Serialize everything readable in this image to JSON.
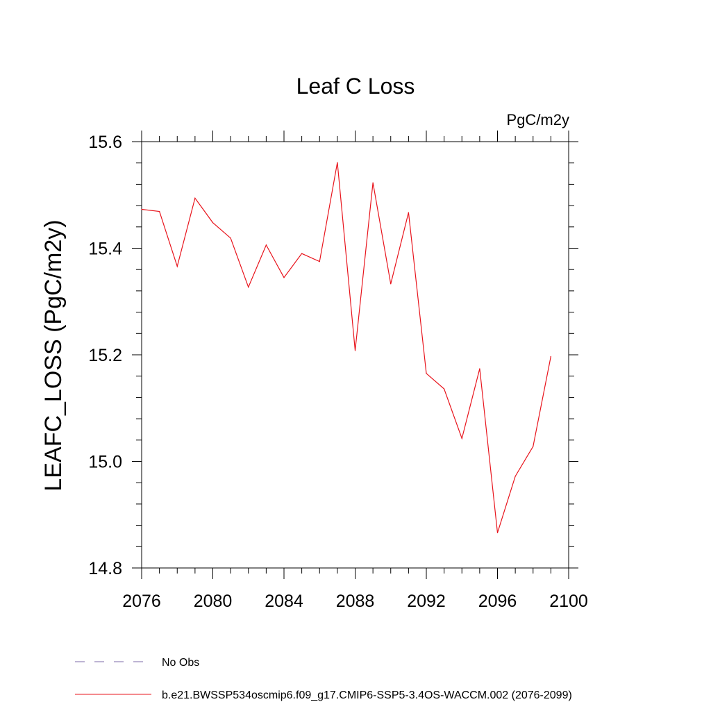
{
  "chart_data": {
    "type": "line",
    "title": "Leaf C Loss",
    "units_label": "PgC/m2y",
    "ylabel": "LEAFC_LOSS  (PgC/m2y)",
    "xlabel": "",
    "xlim": [
      2076,
      2100
    ],
    "ylim": [
      14.8,
      15.6
    ],
    "x_ticks": [
      2076,
      2080,
      2084,
      2088,
      2092,
      2096,
      2100
    ],
    "x_tick_labels": [
      "2076",
      "2080",
      "2084",
      "2088",
      "2092",
      "2096",
      "2100"
    ],
    "y_ticks": [
      14.8,
      15.0,
      15.2,
      15.4,
      15.6
    ],
    "y_tick_labels": [
      "14.8",
      "15.0",
      "15.2",
      "15.4",
      "15.6"
    ],
    "grid": false,
    "legend_position": "bottom-left",
    "series": [
      {
        "name": "b.e21.BWSSP534oscmip6.f09_g17.CMIP6-SSP5-3.4OS-WACCM.002 (2076-2099)",
        "color": "#e8141c",
        "style": "solid",
        "x": [
          2076,
          2077,
          2078,
          2079,
          2080,
          2081,
          2082,
          2083,
          2084,
          2085,
          2086,
          2087,
          2088,
          2089,
          2090,
          2091,
          2092,
          2093,
          2094,
          2095,
          2096,
          2097,
          2098,
          2099
        ],
        "values": [
          15.473,
          15.469,
          15.366,
          15.494,
          15.448,
          15.419,
          15.327,
          15.406,
          15.345,
          15.39,
          15.375,
          15.561,
          15.208,
          15.523,
          15.333,
          15.467,
          15.165,
          15.136,
          15.043,
          15.174,
          14.866,
          14.972,
          15.028,
          15.197
        ]
      }
    ],
    "legend": [
      {
        "label": "No Obs",
        "color": "#7b68a8",
        "style": "dashed"
      },
      {
        "label": "b.e21.BWSSP534oscmip6.f09_g17.CMIP6-SSP5-3.4OS-WACCM.002 (2076-2099)",
        "color": "#e8141c",
        "style": "solid"
      }
    ]
  }
}
